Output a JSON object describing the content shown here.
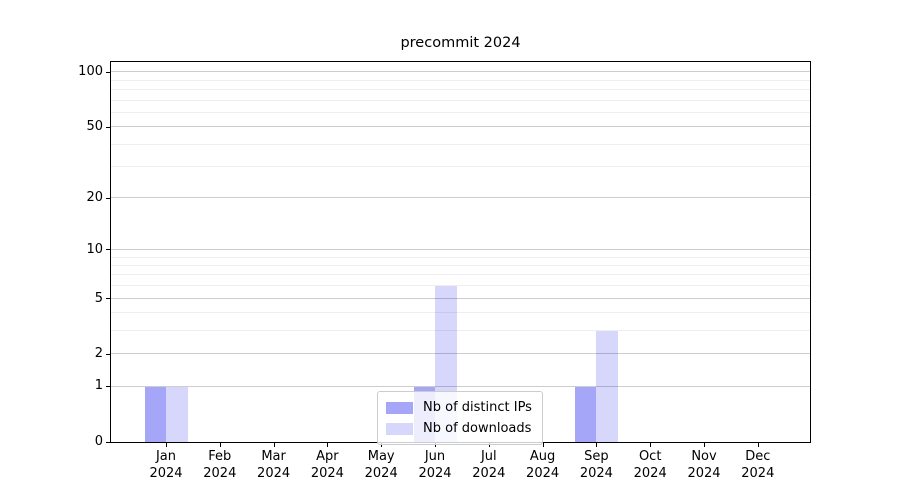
{
  "chart_data": {
    "type": "bar",
    "title": "precommit 2024",
    "categories": [
      "Jan",
      "Feb",
      "Mar",
      "Apr",
      "May",
      "Jun",
      "Jul",
      "Aug",
      "Sep",
      "Oct",
      "Nov",
      "Dec"
    ],
    "category_year": "2024",
    "series": [
      {
        "name": "Nb of distinct IPs",
        "color": "rgba(0,0,235,0.35)",
        "values": [
          1,
          0,
          0,
          0,
          0,
          1,
          0,
          0,
          1,
          0,
          0,
          0
        ]
      },
      {
        "name": "Nb of downloads",
        "color": "rgba(0,0,235,0.155)",
        "values": [
          1,
          0,
          0,
          0,
          0,
          6,
          0,
          0,
          3,
          0,
          0,
          0
        ]
      }
    ],
    "yscale": "log1p",
    "yticks": [
      0,
      1,
      2,
      5,
      10,
      20,
      50,
      100
    ],
    "minor_yticks": [
      3,
      4,
      6,
      7,
      8,
      9,
      30,
      40,
      60,
      70,
      80,
      90
    ],
    "ylim": [
      0,
      113
    ],
    "xlabel": "",
    "ylabel": "",
    "grid": true,
    "legend_position": "lower center"
  },
  "colors": {
    "major_grid": "#cdcdcd",
    "minor_grid": "#eeeeee",
    "spine": "#000000",
    "background": "#ffffff"
  }
}
